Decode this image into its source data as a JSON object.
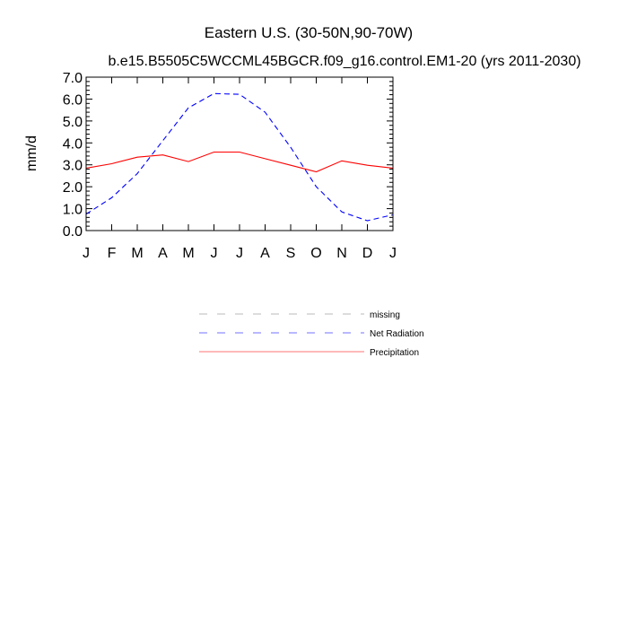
{
  "chart_data": {
    "type": "line",
    "title": "Eastern U.S. (30-50N,90-70W)",
    "subtitle": "b.e15.B5505C5WCCML45BGCR.f09_g16.control.EM1-20 (yrs 2011-2030)",
    "xlabel": "",
    "ylabel": "mm/d",
    "categories": [
      "J",
      "F",
      "M",
      "A",
      "M",
      "J",
      "J",
      "A",
      "S",
      "O",
      "N",
      "D",
      "J"
    ],
    "ylim": [
      0,
      7
    ],
    "yticks": [
      "0.0",
      "1.0",
      "2.0",
      "3.0",
      "4.0",
      "5.0",
      "6.0",
      "7.0"
    ],
    "grid": false,
    "legend_position": "bottom-center",
    "series": [
      {
        "name": "Net Radiation",
        "color": "#0000ff",
        "dash": "dashed",
        "values": [
          0.75,
          1.5,
          2.6,
          4.1,
          5.6,
          6.25,
          6.22,
          5.4,
          3.8,
          2.0,
          0.85,
          0.45,
          0.72
        ]
      },
      {
        "name": "Precipitation",
        "color": "#ff0000",
        "dash": "solid",
        "values": [
          2.85,
          3.05,
          3.35,
          3.45,
          3.15,
          3.58,
          3.58,
          3.28,
          2.98,
          2.68,
          3.18,
          2.98,
          2.85
        ]
      }
    ],
    "legend": [
      {
        "name": "missing",
        "color": "#808080",
        "dash": "dashed"
      },
      {
        "name": "Net Radiation",
        "color": "#0000ff",
        "dash": "dashed"
      },
      {
        "name": "Precipitation",
        "color": "#ff0000",
        "dash": "solid"
      }
    ]
  }
}
